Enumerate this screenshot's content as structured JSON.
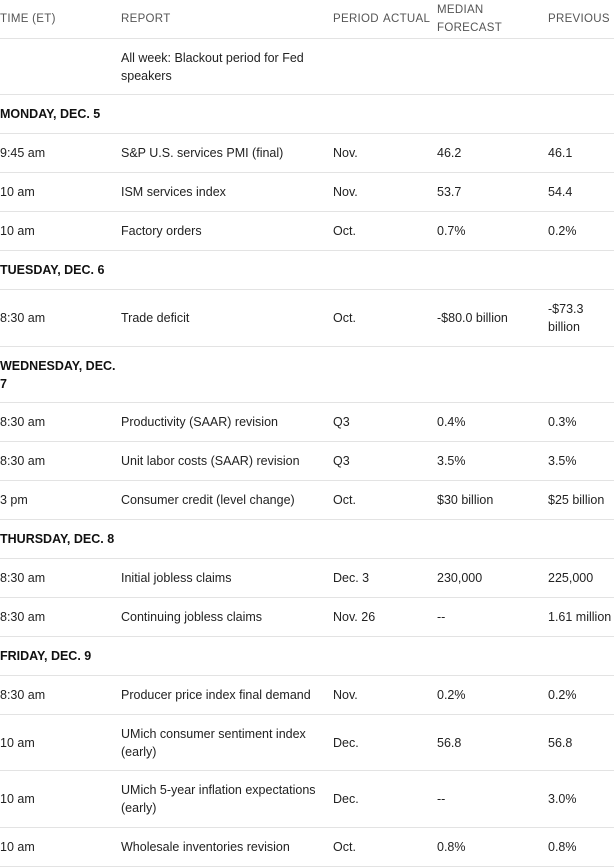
{
  "headers": {
    "time": "TIME (ET)",
    "report": "REPORT",
    "period": "PERIOD",
    "actual": "ACTUAL",
    "median_forecast": "MEDIAN FORECAST",
    "previous": "PREVIOUS"
  },
  "note": "All week: Blackout period for Fed speakers",
  "days": [
    {
      "label": "MONDAY, DEC. 5",
      "rows": [
        {
          "time": "9:45 am",
          "report": "S&P U.S. services PMI (final)",
          "period": "Nov.",
          "actual": "",
          "median": "46.2",
          "previous": "46.1"
        },
        {
          "time": "10 am",
          "report": "ISM services index",
          "period": "Nov.",
          "actual": "",
          "median": "53.7",
          "previous": "54.4"
        },
        {
          "time": "10 am",
          "report": "Factory orders",
          "period": "Oct.",
          "actual": "",
          "median": "0.7%",
          "previous": "0.2%"
        }
      ]
    },
    {
      "label": "TUESDAY, DEC. 6",
      "rows": [
        {
          "time": "8:30 am",
          "report": "Trade deficit",
          "period": "Oct.",
          "actual": "",
          "median": "-$80.0 billion",
          "previous": "-$73.3 billion"
        }
      ]
    },
    {
      "label": "WEDNESDAY, DEC. 7",
      "rows": [
        {
          "time": "8:30 am",
          "report": "Productivity (SAAR) revision",
          "period": "Q3",
          "actual": "",
          "median": "0.4%",
          "previous": "0.3%"
        },
        {
          "time": "8:30 am",
          "report": "Unit labor costs (SAAR) revision",
          "period": "Q3",
          "actual": "",
          "median": "3.5%",
          "previous": "3.5%"
        },
        {
          "time": "3 pm",
          "report": "Consumer credit (level change)",
          "period": "Oct.",
          "actual": "",
          "median": "$30 billion",
          "previous": "$25 billion"
        }
      ]
    },
    {
      "label": "THURSDAY, DEC. 8",
      "rows": [
        {
          "time": "8:30 am",
          "report": "Initial jobless claims",
          "period": "Dec. 3",
          "actual": "",
          "median": "230,000",
          "previous": "225,000"
        },
        {
          "time": "8:30 am",
          "report": "Continuing jobless claims",
          "period": "Nov. 26",
          "actual": "",
          "median": "--",
          "previous": "1.61 million"
        }
      ]
    },
    {
      "label": "FRIDAY, DEC. 9",
      "rows": [
        {
          "time": "8:30 am",
          "report": "Producer price index final demand",
          "period": "Nov.",
          "actual": "",
          "median": "0.2%",
          "previous": "0.2%"
        },
        {
          "time": "10 am",
          "report": "UMich consumer sentiment index (early)",
          "period": "Dec.",
          "actual": "",
          "median": "56.8",
          "previous": "56.8"
        },
        {
          "time": "10 am",
          "report": "UMich 5-year inflation expectations (early)",
          "period": "Dec.",
          "actual": "",
          "median": "--",
          "previous": "3.0%"
        },
        {
          "time": "10 am",
          "report": "Wholesale inventories revision",
          "period": "Oct.",
          "actual": "",
          "median": "0.8%",
          "previous": "0.8%"
        }
      ]
    }
  ]
}
